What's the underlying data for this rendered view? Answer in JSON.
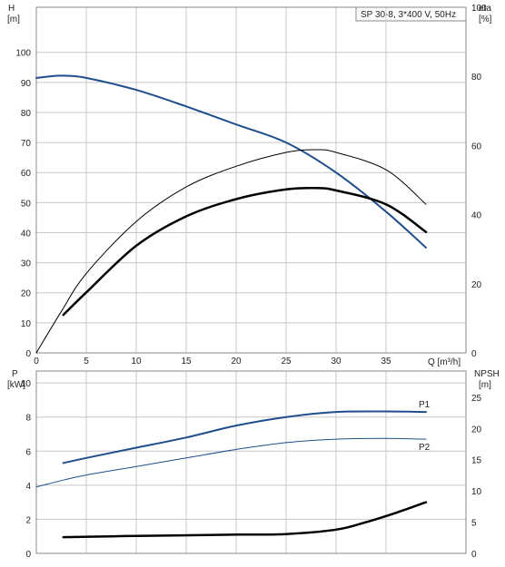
{
  "title_box": "SP 30-8, 3*400 V, 50Hz",
  "colors": {
    "blue": "#1f4e8c",
    "black": "#000000",
    "grid": "#c8c8c8"
  },
  "chart_data": [
    {
      "type": "line",
      "title": "SP 30-8, 3*400 V, 50Hz",
      "xlabel": "Q [m³/h]",
      "ylabel_left_name": "H",
      "ylabel_left_unit": "[m]",
      "ylabel_right_name": "eta",
      "ylabel_right_unit": "[%]",
      "xlim": [
        0,
        43
      ],
      "ylim_left": [
        0,
        115
      ],
      "ylim_right": [
        0,
        100
      ],
      "xticks": [
        0,
        5,
        10,
        15,
        20,
        25,
        30,
        35
      ],
      "yticks_left": [
        0,
        10,
        20,
        30,
        40,
        50,
        60,
        70,
        80,
        90,
        100
      ],
      "yticks_right": [
        0,
        20,
        40,
        60,
        80,
        100
      ],
      "grid": true,
      "series": [
        {
          "axis": "left",
          "color": "#1f4e8c",
          "width": 2,
          "x": [
            0,
            2,
            3,
            5,
            10,
            15,
            20,
            25,
            30,
            35,
            39
          ],
          "y": [
            91.5,
            92.2,
            92.2,
            91.5,
            87.5,
            82,
            76,
            70,
            60,
            47,
            35
          ]
        },
        {
          "axis": "right",
          "color": "#000000",
          "width": 1,
          "x": [
            0,
            2.5,
            5,
            10,
            15,
            20,
            25,
            28,
            30,
            35,
            39
          ],
          "y": [
            0,
            12,
            23,
            38,
            48,
            54,
            58,
            58.8,
            58,
            53,
            43
          ]
        },
        {
          "axis": "right",
          "color": "#000000",
          "width": 2.5,
          "x": [
            2.7,
            5,
            10,
            15,
            20,
            25,
            28,
            30,
            35,
            39
          ],
          "y": [
            11,
            17.5,
            31,
            39.5,
            44.5,
            47.3,
            47.7,
            47,
            43,
            35
          ]
        }
      ]
    },
    {
      "type": "line",
      "xlabel": "",
      "ylabel_left_name": "P",
      "ylabel_left_unit": "[kW]",
      "ylabel_right_name": "NPSH",
      "ylabel_right_unit": "[m]",
      "xlim": [
        0,
        43
      ],
      "ylim_left": [
        0,
        10.7
      ],
      "ylim_right": [
        0,
        29.2
      ],
      "yticks_left": [
        0,
        2,
        4,
        6,
        8,
        10
      ],
      "yticks_right": [
        0,
        5,
        10,
        15,
        20,
        25
      ],
      "grid": true,
      "series": [
        {
          "name": "P1",
          "axis": "left",
          "color": "#1f4e8c",
          "width": 2,
          "x": [
            2.7,
            5,
            10,
            15,
            20,
            25,
            30,
            35,
            39
          ],
          "y": [
            5.3,
            5.6,
            6.2,
            6.8,
            7.5,
            8.0,
            8.3,
            8.33,
            8.3
          ]
        },
        {
          "name": "P2",
          "axis": "left",
          "color": "#1f4e8c",
          "width": 1,
          "x": [
            0,
            2.7,
            5,
            10,
            15,
            20,
            25,
            30,
            35,
            39
          ],
          "y": [
            3.9,
            4.3,
            4.6,
            5.1,
            5.6,
            6.1,
            6.5,
            6.7,
            6.75,
            6.7
          ]
        },
        {
          "axis": "right",
          "color": "#000000",
          "width": 2.5,
          "x": [
            2.7,
            10,
            20,
            25,
            30,
            33,
            36,
            39
          ],
          "y": [
            2.6,
            2.8,
            3.0,
            3.1,
            3.8,
            5.0,
            6.5,
            8.2
          ]
        }
      ]
    }
  ]
}
